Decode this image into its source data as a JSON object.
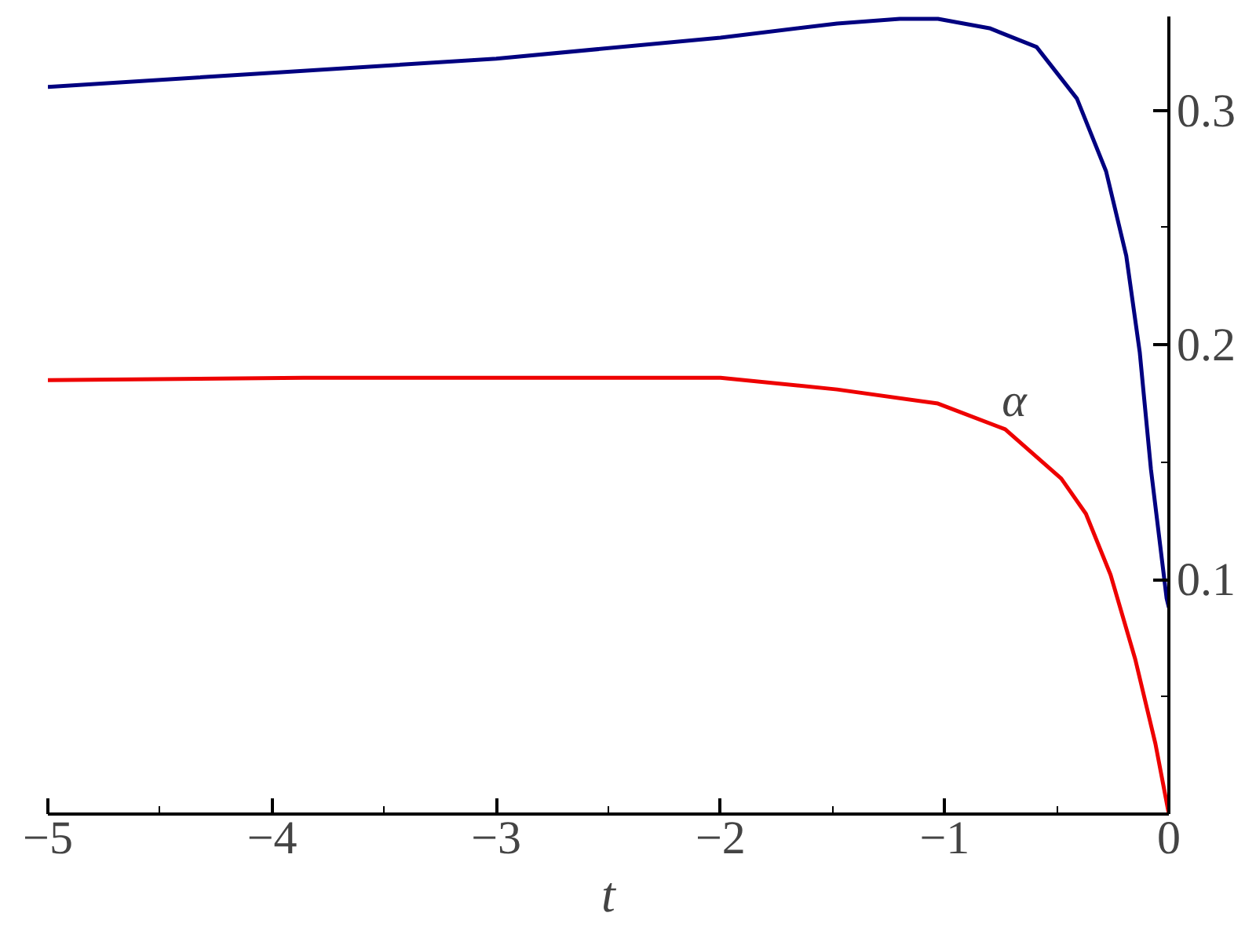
{
  "chart_data": {
    "type": "line",
    "xlabel": "t",
    "xlim": [
      -5,
      0
    ],
    "ylim": [
      0,
      0.34
    ],
    "xticks": [
      -5,
      {
        "value": -4.5,
        "label": null
      },
      -4,
      {
        "value": -3.5,
        "label": null
      },
      -3,
      {
        "value": -2.5,
        "label": null
      },
      -2,
      {
        "value": -1.5,
        "label": null
      },
      -1,
      {
        "value": -0.5,
        "label": null
      },
      0
    ],
    "yticks": [
      {
        "value": 0.05,
        "label": null
      },
      0.1,
      {
        "value": 0.15,
        "label": null
      },
      0.2,
      {
        "value": 0.25,
        "label": null
      },
      0.3
    ],
    "grid": false,
    "series": [
      {
        "color": "#000080",
        "x": [
          -5,
          -4,
          -3,
          -2,
          -1.48,
          -1.2,
          -1.03,
          -0.8,
          -0.59,
          -0.41,
          -0.28,
          -0.19,
          -0.13,
          -0.08,
          -0.01,
          0
        ],
        "values": [
          0.31,
          0.316,
          0.322,
          0.331,
          0.337,
          0.339,
          0.339,
          0.335,
          0.327,
          0.305,
          0.274,
          0.238,
          0.197,
          0.147,
          0.092,
          0.088
        ]
      },
      {
        "color": "#ee0000",
        "x": [
          -5,
          -3.86,
          -3,
          -2,
          -1.48,
          -1.03,
          -0.73,
          -0.48,
          -0.37,
          -0.26,
          -0.15,
          -0.06,
          0
        ],
        "values": [
          0.185,
          0.186,
          0.186,
          0.186,
          0.181,
          0.175,
          0.164,
          0.143,
          0.128,
          0.102,
          0.066,
          0.03,
          0
        ]
      }
    ],
    "annotations": [
      {
        "text": "α",
        "x": -0.69,
        "y": 0.165
      }
    ]
  }
}
